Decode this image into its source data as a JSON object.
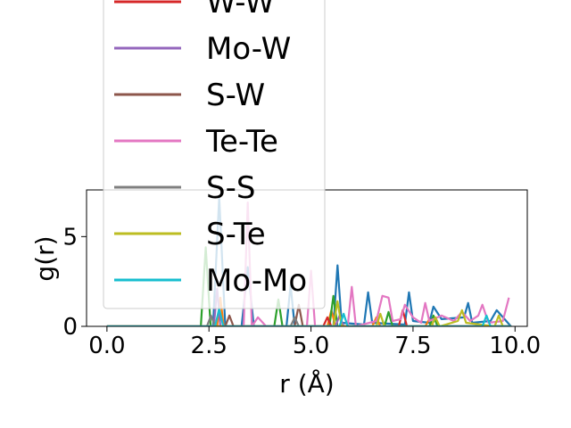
{
  "chart_data": {
    "type": "line",
    "title": "",
    "xlabel": "r (Å)",
    "ylabel": "g(r)",
    "xlim": [
      -0.5,
      10.3
    ],
    "ylim": [
      0,
      7.6
    ],
    "x_ticks": [
      0.0,
      2.5,
      5.0,
      7.5,
      10.0
    ],
    "x_tick_labels": [
      "0.0",
      "2.5",
      "5.0",
      "7.5",
      "10.0"
    ],
    "y_ticks": [
      0,
      5
    ],
    "y_tick_labels": [
      "0",
      "5"
    ],
    "grid": false,
    "legend_position": "upper center, overflowing above the axes",
    "legend_visible_entries": [
      {
        "name": "W-W",
        "color": "#d62728"
      },
      {
        "name": "Mo-W",
        "color": "#9467bd"
      },
      {
        "name": "S-W",
        "color": "#8c564b"
      },
      {
        "name": "Te-Te",
        "color": "#e377c2"
      },
      {
        "name": "S-S",
        "color": "#7f7f7f"
      },
      {
        "name": "S-Te",
        "color": "#bcbd22"
      },
      {
        "name": "Mo-Mo",
        "color": "#17becf"
      }
    ],
    "series": [
      {
        "name": "",
        "color": "#1f77b4",
        "points": [
          [
            0,
            0
          ],
          [
            2.6,
            0
          ],
          [
            2.75,
            7.2
          ],
          [
            2.9,
            0
          ],
          [
            3.3,
            0
          ],
          [
            3.45,
            3.3
          ],
          [
            3.6,
            0
          ],
          [
            4.4,
            0
          ],
          [
            4.5,
            2.3
          ],
          [
            4.6,
            0
          ],
          [
            5.55,
            0
          ],
          [
            5.65,
            3.4
          ],
          [
            5.75,
            0.2
          ],
          [
            6.3,
            0.1
          ],
          [
            6.4,
            1.9
          ],
          [
            6.5,
            0.2
          ],
          [
            7.3,
            0.1
          ],
          [
            7.4,
            1.9
          ],
          [
            7.5,
            0.3
          ],
          [
            7.9,
            0.2
          ],
          [
            8.0,
            1.1
          ],
          [
            8.2,
            0.4
          ],
          [
            8.75,
            0.5
          ],
          [
            8.85,
            1.3
          ],
          [
            8.95,
            0.2
          ],
          [
            9.4,
            0.3
          ],
          [
            9.55,
            0.9
          ],
          [
            9.9,
            0
          ]
        ]
      },
      {
        "name": "",
        "color": "#ff7f0e",
        "points": [
          [
            0,
            0
          ],
          [
            2.7,
            0
          ],
          [
            2.78,
            1.6
          ],
          [
            2.86,
            0
          ],
          [
            5.4,
            0
          ],
          [
            5.5,
            0.9
          ],
          [
            5.6,
            0
          ],
          [
            6.5,
            0
          ],
          [
            6.6,
            0.5
          ],
          [
            6.7,
            0
          ],
          [
            7.8,
            0
          ],
          [
            7.9,
            0.4
          ],
          [
            8.0,
            0
          ],
          [
            9.9,
            0
          ]
        ]
      },
      {
        "name": "",
        "color": "#2ca02c",
        "points": [
          [
            0,
            0
          ],
          [
            2.3,
            0
          ],
          [
            2.42,
            4.4
          ],
          [
            2.54,
            0
          ],
          [
            4.1,
            0
          ],
          [
            4.2,
            1.5
          ],
          [
            4.3,
            0
          ],
          [
            5.45,
            0
          ],
          [
            5.55,
            1.7
          ],
          [
            5.65,
            0
          ],
          [
            6.8,
            0
          ],
          [
            6.9,
            0.8
          ],
          [
            7.0,
            0
          ],
          [
            7.9,
            0
          ],
          [
            8.0,
            0.6
          ],
          [
            8.1,
            0
          ],
          [
            9.9,
            0
          ]
        ]
      },
      {
        "name": "W-W",
        "color": "#d62728",
        "points": [
          [
            0,
            0
          ],
          [
            5.3,
            0
          ],
          [
            5.4,
            0.5
          ],
          [
            5.5,
            0
          ],
          [
            7.15,
            0
          ],
          [
            7.25,
            0.9
          ],
          [
            7.35,
            0
          ],
          [
            9.9,
            0
          ]
        ]
      },
      {
        "name": "Mo-W",
        "color": "#9467bd",
        "points": [
          [
            0,
            0
          ],
          [
            2.62,
            0
          ],
          [
            2.7,
            2.1
          ],
          [
            2.78,
            0
          ],
          [
            5.6,
            0
          ],
          [
            5.7,
            0.6
          ],
          [
            5.8,
            0
          ],
          [
            9.9,
            0
          ]
        ]
      },
      {
        "name": "S-W",
        "color": "#8c564b",
        "points": [
          [
            0,
            0
          ],
          [
            2.9,
            0
          ],
          [
            3.0,
            0.6
          ],
          [
            3.1,
            0
          ],
          [
            4.6,
            0
          ],
          [
            4.7,
            1.2
          ],
          [
            4.8,
            0
          ],
          [
            9.9,
            0
          ]
        ]
      },
      {
        "name": "Te-Te",
        "color": "#e377c2",
        "points": [
          [
            0,
            0
          ],
          [
            3.35,
            0
          ],
          [
            3.45,
            6.9
          ],
          [
            3.55,
            0
          ],
          [
            3.7,
            0.5
          ],
          [
            3.9,
            0
          ],
          [
            4.9,
            0
          ],
          [
            5.0,
            3.1
          ],
          [
            5.1,
            0
          ],
          [
            5.9,
            0
          ],
          [
            6.0,
            2.2
          ],
          [
            6.1,
            0
          ],
          [
            6.6,
            0.3
          ],
          [
            6.75,
            1.7
          ],
          [
            6.9,
            1.6
          ],
          [
            7.0,
            0.3
          ],
          [
            7.2,
            0.4
          ],
          [
            7.3,
            1.2
          ],
          [
            7.5,
            0.5
          ],
          [
            7.7,
            0.2
          ],
          [
            7.8,
            1.3
          ],
          [
            7.9,
            0.3
          ],
          [
            8.2,
            0.6
          ],
          [
            8.5,
            0.3
          ],
          [
            8.7,
            0.8
          ],
          [
            8.9,
            0.3
          ],
          [
            9.1,
            0.6
          ],
          [
            9.2,
            1.2
          ],
          [
            9.35,
            0.2
          ],
          [
            9.7,
            0.3
          ],
          [
            9.85,
            1.6
          ]
        ]
      },
      {
        "name": "S-S",
        "color": "#7f7f7f",
        "points": [
          [
            0,
            0
          ],
          [
            2.45,
            0
          ],
          [
            2.55,
            0.6
          ],
          [
            2.65,
            0
          ],
          [
            4.5,
            0
          ],
          [
            4.6,
            0.5
          ],
          [
            4.7,
            0
          ],
          [
            9.9,
            0
          ]
        ]
      },
      {
        "name": "S-Te",
        "color": "#bcbd22",
        "points": [
          [
            0,
            0
          ],
          [
            5.55,
            0
          ],
          [
            5.65,
            1.4
          ],
          [
            5.75,
            0
          ],
          [
            6.6,
            0
          ],
          [
            6.7,
            0.7
          ],
          [
            6.8,
            0
          ],
          [
            7.95,
            0
          ],
          [
            8.05,
            0.5
          ],
          [
            8.15,
            0
          ],
          [
            8.6,
            0.3
          ],
          [
            8.7,
            0.9
          ],
          [
            8.8,
            0.2
          ],
          [
            9.5,
            0
          ],
          [
            9.6,
            0.6
          ],
          [
            9.7,
            0
          ],
          [
            9.9,
            0
          ]
        ]
      },
      {
        "name": "Mo-Mo",
        "color": "#17becf",
        "points": [
          [
            0,
            0
          ],
          [
            2.65,
            0
          ],
          [
            2.75,
            1.0
          ],
          [
            2.85,
            0
          ],
          [
            5.7,
            0
          ],
          [
            5.8,
            0.7
          ],
          [
            5.9,
            0
          ],
          [
            9.2,
            0
          ],
          [
            9.3,
            0.6
          ],
          [
            9.4,
            0
          ],
          [
            9.9,
            0
          ]
        ]
      }
    ]
  }
}
